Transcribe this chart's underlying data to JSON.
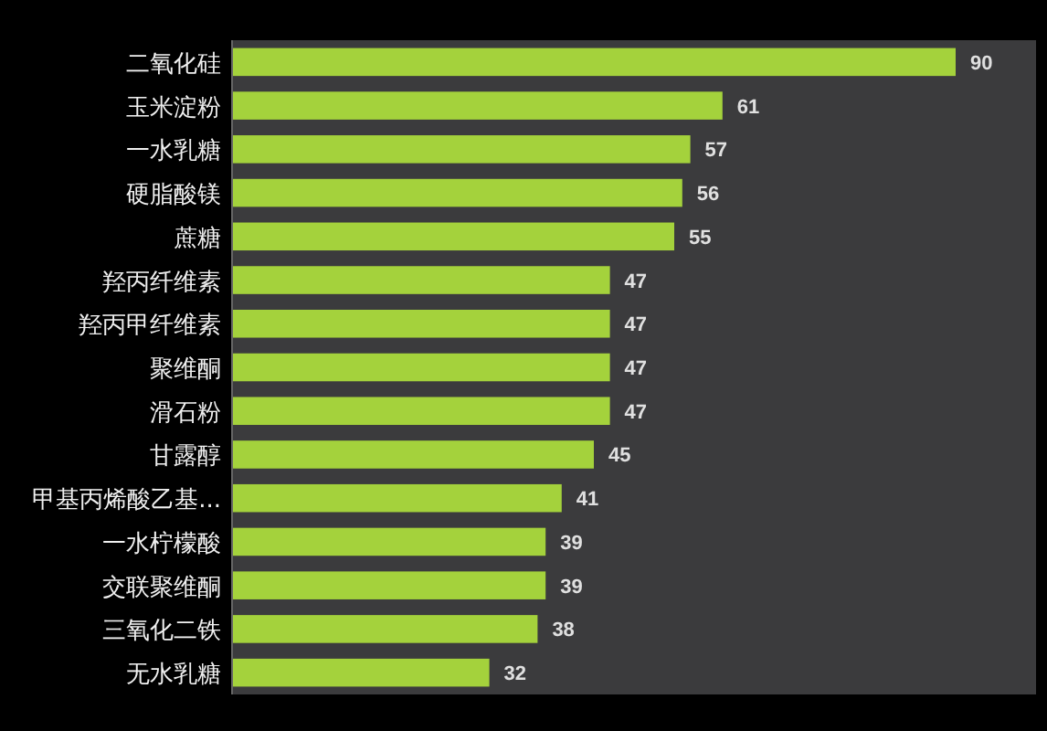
{
  "chart_data": {
    "type": "bar",
    "orientation": "horizontal",
    "categories": [
      "二氧化硅",
      "玉米淀粉",
      "一水乳糖",
      "硬脂酸镁",
      "蔗糖",
      "羟丙纤维素",
      "羟丙甲纤维素",
      "聚维酮",
      "滑石粉",
      "甘露醇",
      "甲基丙烯酸乙基...",
      "一水柠檬酸",
      "交联聚维酮",
      "三氧化二铁",
      "无水乳糖"
    ],
    "values": [
      90,
      61,
      57,
      56,
      55,
      47,
      47,
      47,
      47,
      45,
      41,
      39,
      39,
      38,
      32
    ],
    "color": "#a4d23c",
    "xlim": [
      0,
      100
    ],
    "data_labels": true
  }
}
